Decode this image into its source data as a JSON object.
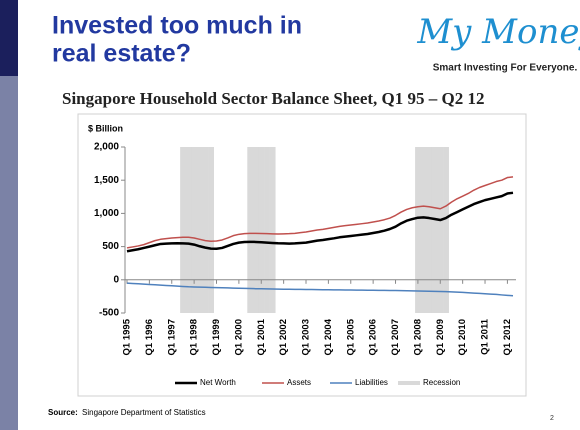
{
  "slide": {
    "title_line1": "Invested too much in",
    "title_line2": "real estate?",
    "logo": "My Money",
    "tagline": "Smart Investing For Everyone.",
    "source_label": "Source:",
    "source": "Singapore Department of Statistics",
    "page": "2"
  },
  "chart_data": {
    "type": "line",
    "title": "Singapore Household Sector Balance Sheet, Q1 95 – Q2 12",
    "y_label": "$ Billion",
    "categories": [
      "Q1 1995",
      null,
      null,
      null,
      "Q1 1996",
      null,
      null,
      null,
      "Q1 1997",
      null,
      null,
      null,
      "Q1 1998",
      null,
      null,
      null,
      "Q1 1999",
      null,
      null,
      null,
      "Q1 2000",
      null,
      null,
      null,
      "Q1 2001",
      null,
      null,
      null,
      "Q1 2002",
      null,
      null,
      null,
      "Q1 2003",
      null,
      null,
      null,
      "Q1 2004",
      null,
      null,
      null,
      "Q1 2005",
      null,
      null,
      null,
      "Q1 2006",
      null,
      null,
      null,
      "Q1 2007",
      null,
      null,
      null,
      "Q1 2008",
      null,
      null,
      null,
      "Q1 2009",
      null,
      null,
      null,
      "Q1 2010",
      null,
      null,
      null,
      "Q1 2011",
      null,
      null,
      null,
      "Q1 2012",
      null
    ],
    "series": [
      {
        "name": "Net Worth",
        "color": "#000000",
        "type": "line",
        "width": 2.5,
        "values": [
          430,
          445,
          460,
          480,
          500,
          520,
          540,
          545,
          548,
          550,
          548,
          545,
          530,
          505,
          485,
          470,
          468,
          480,
          510,
          540,
          560,
          570,
          572,
          570,
          565,
          560,
          555,
          550,
          548,
          545,
          548,
          555,
          560,
          575,
          590,
          600,
          612,
          625,
          640,
          650,
          660,
          670,
          680,
          690,
          705,
          720,
          740,
          765,
          800,
          850,
          890,
          915,
          935,
          940,
          930,
          915,
          900,
          930,
          980,
          1020,
          1060,
          1100,
          1140,
          1170,
          1200,
          1220,
          1240,
          1260,
          1300,
          1310
        ]
      },
      {
        "name": "Assets",
        "color": "#c0504d",
        "type": "line",
        "width": 1.5,
        "values": [
          480,
          495,
          510,
          530,
          560,
          590,
          610,
          620,
          630,
          635,
          640,
          640,
          630,
          610,
          590,
          580,
          585,
          600,
          630,
          665,
          685,
          695,
          700,
          700,
          698,
          695,
          692,
          690,
          692,
          695,
          700,
          710,
          720,
          735,
          750,
          760,
          775,
          790,
          805,
          815,
          825,
          835,
          845,
          855,
          870,
          885,
          905,
          930,
          970,
          1020,
          1060,
          1085,
          1100,
          1110,
          1100,
          1085,
          1070,
          1110,
          1170,
          1220,
          1260,
          1300,
          1350,
          1390,
          1420,
          1450,
          1480,
          1500,
          1540,
          1550
        ]
      },
      {
        "name": "Liabilities",
        "color": "#4f81bd",
        "type": "line",
        "width": 1.5,
        "values": [
          -50,
          -55,
          -60,
          -65,
          -70,
          -75,
          -80,
          -85,
          -90,
          -95,
          -100,
          -105,
          -108,
          -110,
          -112,
          -115,
          -118,
          -120,
          -122,
          -125,
          -128,
          -130,
          -132,
          -134,
          -135,
          -137,
          -139,
          -140,
          -142,
          -143,
          -144,
          -145,
          -146,
          -147,
          -148,
          -149,
          -150,
          -151,
          -152,
          -153,
          -154,
          -155,
          -156,
          -157,
          -158,
          -159,
          -160,
          -161,
          -162,
          -163,
          -164,
          -166,
          -168,
          -170,
          -172,
          -174,
          -176,
          -178,
          -182,
          -186,
          -190,
          -195,
          -200,
          -205,
          -210,
          -215,
          -220,
          -228,
          -235,
          -240
        ]
      },
      {
        "name": "Recession",
        "color": "#d9d9d9",
        "type": "bar",
        "values": [
          null,
          null,
          null,
          null,
          null,
          null,
          null,
          null,
          null,
          null,
          2000,
          2000,
          2000,
          2000,
          2000,
          2000,
          null,
          null,
          null,
          null,
          null,
          null,
          2000,
          2000,
          2000,
          2000,
          2000,
          null,
          null,
          null,
          null,
          null,
          null,
          null,
          null,
          null,
          null,
          null,
          null,
          null,
          null,
          null,
          null,
          null,
          null,
          null,
          null,
          null,
          null,
          null,
          null,
          null,
          2000,
          2000,
          2000,
          2000,
          2000,
          2000,
          null,
          null,
          null,
          null,
          null,
          null,
          null,
          null,
          null,
          null,
          null,
          null
        ]
      }
    ],
    "ylim": [
      -500,
      2000
    ],
    "yticks": [
      -500,
      0,
      500,
      {
        "value": 1000,
        "label": "1,000"
      },
      {
        "value": 1500,
        "label": "1,500"
      },
      {
        "value": 2000,
        "label": "2,000"
      }
    ],
    "grid": false
  }
}
